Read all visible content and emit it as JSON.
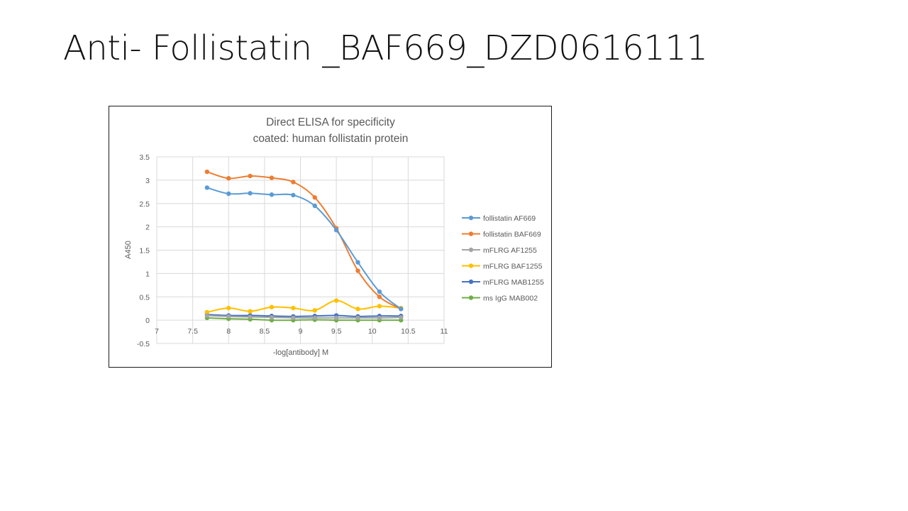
{
  "slide": {
    "title": "Anti- Follistatin _BAF669_DZD0616111"
  },
  "chart_data": {
    "type": "line",
    "title": "Direct ELISA for specificity",
    "subtitle": "coated: human follistatin protein",
    "xlabel": "-log[antibody] M",
    "ylabel": "A450",
    "xlim": [
      7,
      11
    ],
    "ylim": [
      -0.5,
      3.5
    ],
    "x_ticks": [
      7,
      7.5,
      8,
      8.5,
      9,
      9.5,
      10,
      10.5,
      11
    ],
    "x_tick_labels": [
      "7",
      "7.5",
      "8",
      "8.5",
      "9",
      "9.5",
      "10",
      "10.5",
      "11"
    ],
    "y_ticks": [
      -0.5,
      0,
      0.5,
      1,
      1.5,
      2,
      2.5,
      3,
      3.5
    ],
    "y_tick_labels": [
      "-0.5",
      "0",
      "0.5",
      "1",
      "1.5",
      "2",
      "2.5",
      "3",
      "3.5"
    ],
    "grid": true,
    "legend_position": "right",
    "x": [
      7.7,
      8.0,
      8.3,
      8.6,
      8.9,
      9.2,
      9.5,
      9.8,
      10.1,
      10.4
    ],
    "series": [
      {
        "name": "follistatin AF669",
        "color": "#5B9BD5",
        "values": [
          2.84,
          2.71,
          2.72,
          2.69,
          2.68,
          2.45,
          1.93,
          1.24,
          0.61,
          0.24
        ]
      },
      {
        "name": "follistatin BAF669",
        "color": "#ED7D31",
        "values": [
          3.18,
          3.04,
          3.09,
          3.05,
          2.96,
          2.63,
          1.97,
          1.06,
          0.5,
          0.24
        ]
      },
      {
        "name": "mFLRG AF1255",
        "color": "#A5A5A5",
        "values": [
          0.1,
          0.08,
          0.07,
          0.06,
          0.05,
          0.05,
          0.05,
          0.05,
          0.05,
          0.06
        ]
      },
      {
        "name": "mFLRG BAF1255",
        "color": "#FFC000",
        "values": [
          0.17,
          0.26,
          0.19,
          0.28,
          0.26,
          0.21,
          0.42,
          0.24,
          0.3,
          0.26
        ]
      },
      {
        "name": "mFLRG MAB1255",
        "color": "#4472C4",
        "values": [
          0.12,
          0.1,
          0.1,
          0.09,
          0.08,
          0.09,
          0.1,
          0.08,
          0.09,
          0.09
        ]
      },
      {
        "name": "ms IgG MAB002",
        "color": "#70AD47",
        "values": [
          0.05,
          0.03,
          0.02,
          0.0,
          0.0,
          0.01,
          0.0,
          0.0,
          0.0,
          0.0
        ]
      }
    ]
  }
}
